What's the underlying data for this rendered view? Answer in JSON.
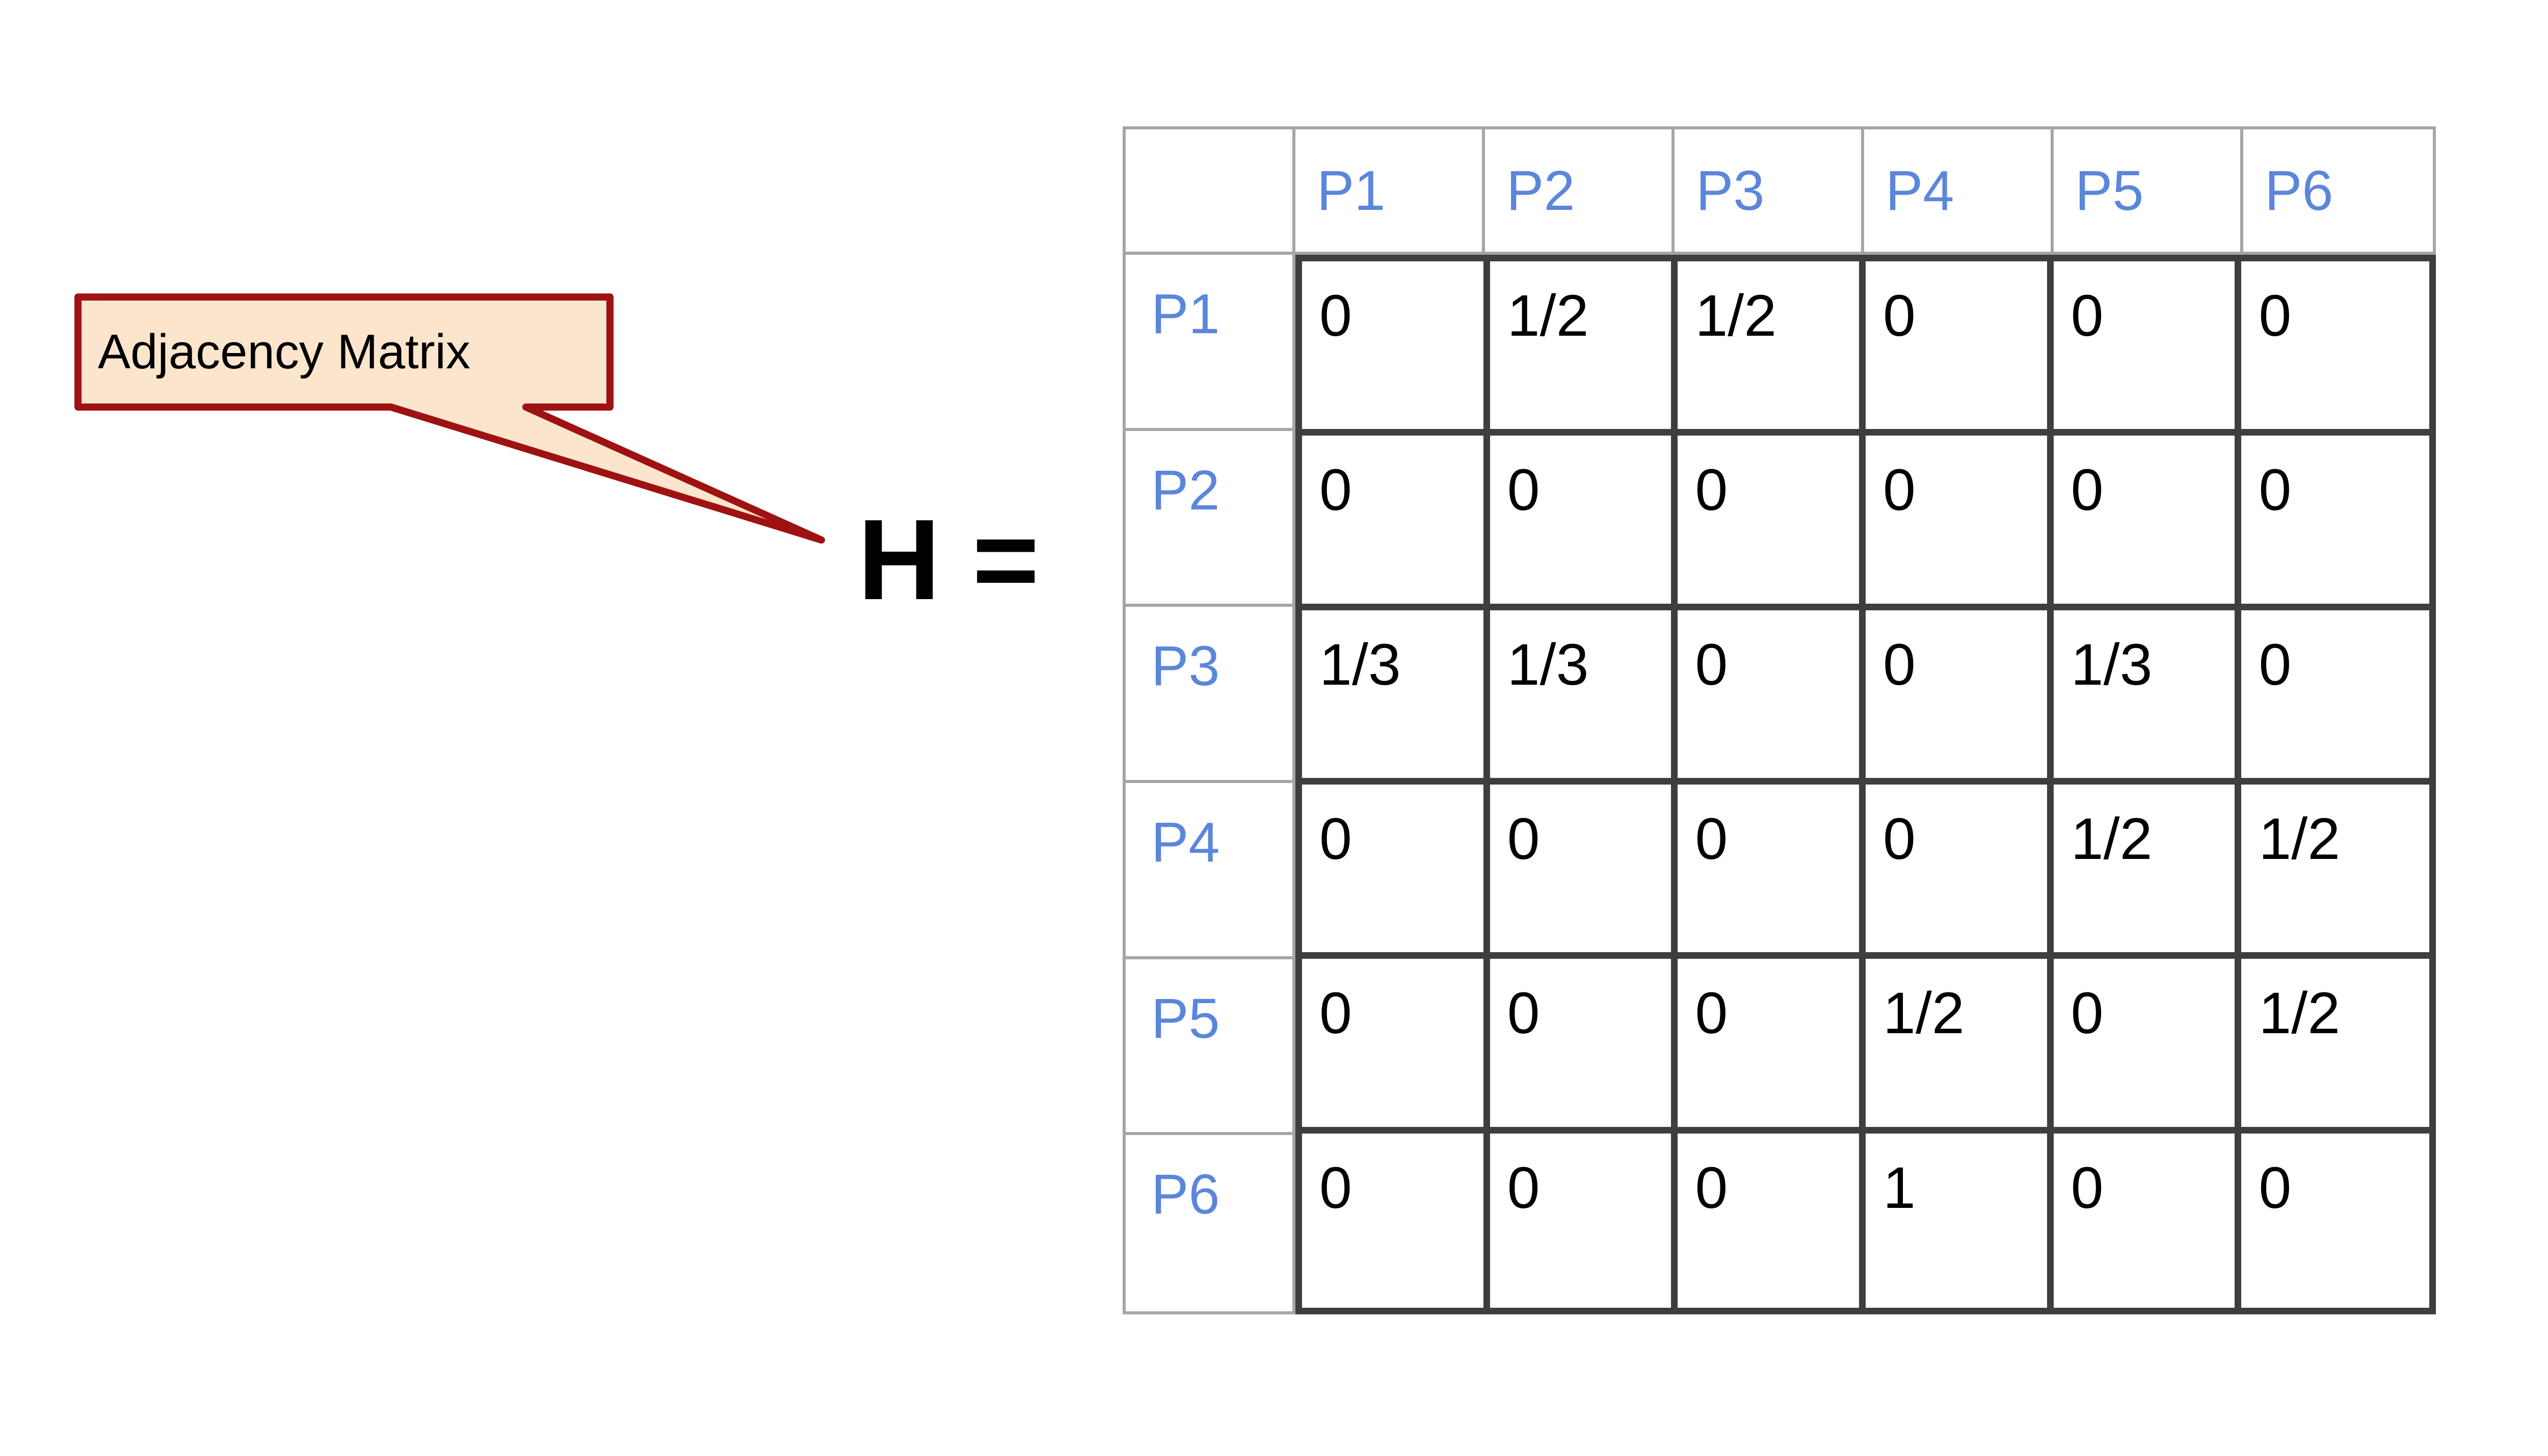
{
  "callout": {
    "label": "Adjacency Matrix"
  },
  "equation": {
    "label": "H ="
  },
  "matrix": {
    "corner_label": "",
    "col_headers": [
      "P1",
      "P2",
      "P3",
      "P4",
      "P5",
      "P6"
    ],
    "row_headers": [
      "P1",
      "P2",
      "P3",
      "P4",
      "P5",
      "P6"
    ],
    "rows": [
      [
        "0",
        "1/2",
        "1/2",
        "0",
        "0",
        "0"
      ],
      [
        "0",
        "0",
        "0",
        "0",
        "0",
        "0"
      ],
      [
        "1/3",
        "1/3",
        "0",
        "0",
        "1/3",
        "0"
      ],
      [
        "0",
        "0",
        "0",
        "0",
        "1/2",
        "1/2"
      ],
      [
        "0",
        "0",
        "0",
        "1/2",
        "0",
        "1/2"
      ],
      [
        "0",
        "0",
        "0",
        "1",
        "0",
        "0"
      ]
    ]
  },
  "colors": {
    "callout_fill": "#FBE5CD",
    "callout_border": "#9E1212",
    "header_text": "#5B86DC",
    "grid_light": "#A6A6A6",
    "grid_dark": "#3E3E3E",
    "cell_text": "#000000"
  }
}
